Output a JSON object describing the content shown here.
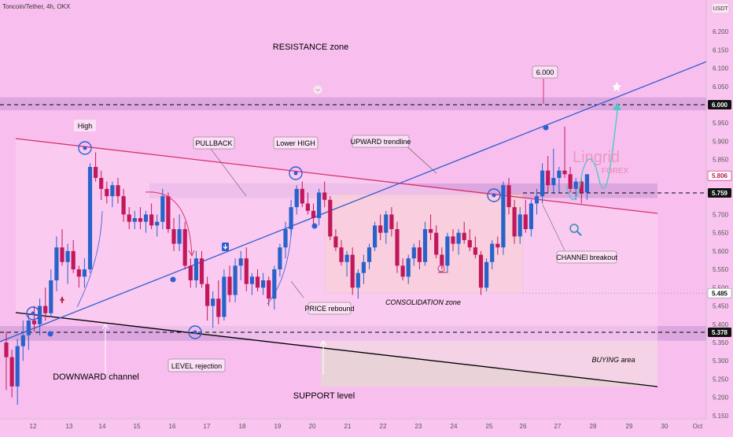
{
  "header": {
    "symbol_line": "Toncoin/Tether, 4h, OKX"
  },
  "colors": {
    "background": "#f9c4ef",
    "bull": "#2863c9",
    "bear": "#c2185b",
    "zone_band": "#dca6df",
    "consolidation_fill": "#f7c9c2",
    "buying_fill": "#e8d6d3",
    "trend_blue": "#2f5fd0",
    "channel_red": "#d6336c",
    "channel_black": "#000000",
    "brand": "#e58ab1"
  },
  "chart_data": {
    "type": "candlestick",
    "title": "Toncoin/Tether, 4h, OKX",
    "currency_label": "USDT",
    "y_axis": {
      "ticks": [
        "6.200",
        "6.150",
        "6.100",
        "6.050",
        "6.000",
        "5.950",
        "5.900",
        "5.850",
        "5.806",
        "5.759",
        "5.700",
        "5.650",
        "5.600",
        "5.550",
        "5.500",
        "5.485",
        "5.450",
        "5.400",
        "5.378",
        "5.350",
        "5.300",
        "5.250",
        "5.200",
        "5.150"
      ],
      "ylim": [
        5.13,
        6.23
      ]
    },
    "x_axis": {
      "ticks": [
        "12",
        "13",
        "14",
        "15",
        "16",
        "17",
        "18",
        "19",
        "20",
        "21",
        "22",
        "23",
        "24",
        "25",
        "26",
        "27",
        "28",
        "29",
        "30",
        "Oct"
      ]
    },
    "price_tags": [
      {
        "value": 6.0,
        "label": "6.000",
        "style": "dark"
      },
      {
        "value": 5.806,
        "label": "5.806",
        "style": "red"
      },
      {
        "value": 5.759,
        "label": "5.759",
        "style": "dark"
      },
      {
        "value": 5.485,
        "label": "5.485",
        "style": "light"
      },
      {
        "value": 5.378,
        "label": "5.378",
        "style": "dark"
      }
    ],
    "candles": [
      [
        5.35,
        5.38,
        5.22,
        5.31
      ],
      [
        5.31,
        5.33,
        5.2,
        5.23
      ],
      [
        5.23,
        5.36,
        5.18,
        5.34
      ],
      [
        5.34,
        5.41,
        5.3,
        5.37
      ],
      [
        5.37,
        5.43,
        5.33,
        5.41
      ],
      [
        5.41,
        5.45,
        5.38,
        5.4
      ],
      [
        5.4,
        5.47,
        5.37,
        5.45
      ],
      [
        5.45,
        5.5,
        5.41,
        5.43
      ],
      [
        5.43,
        5.55,
        5.42,
        5.52
      ],
      [
        5.52,
        5.64,
        5.49,
        5.61
      ],
      [
        5.61,
        5.66,
        5.56,
        5.57
      ],
      [
        5.57,
        5.62,
        5.51,
        5.6
      ],
      [
        5.6,
        5.63,
        5.54,
        5.55
      ],
      [
        5.55,
        5.56,
        5.5,
        5.53
      ],
      [
        5.53,
        5.58,
        5.5,
        5.55
      ],
      [
        5.55,
        5.84,
        5.54,
        5.83
      ],
      [
        5.83,
        5.87,
        5.79,
        5.8
      ],
      [
        5.8,
        5.82,
        5.74,
        5.77
      ],
      [
        5.77,
        5.79,
        5.73,
        5.75
      ],
      [
        5.75,
        5.79,
        5.72,
        5.78
      ],
      [
        5.78,
        5.8,
        5.73,
        5.75
      ],
      [
        5.75,
        5.77,
        5.68,
        5.7
      ],
      [
        5.7,
        5.72,
        5.66,
        5.68
      ],
      [
        5.68,
        5.71,
        5.66,
        5.69
      ],
      [
        5.69,
        5.72,
        5.66,
        5.68
      ],
      [
        5.68,
        5.71,
        5.65,
        5.7
      ],
      [
        5.7,
        5.73,
        5.66,
        5.67
      ],
      [
        5.67,
        5.7,
        5.64,
        5.68
      ],
      [
        5.68,
        5.77,
        5.66,
        5.75
      ],
      [
        5.75,
        5.76,
        5.65,
        5.66
      ],
      [
        5.66,
        5.69,
        5.6,
        5.62
      ],
      [
        5.62,
        5.7,
        5.6,
        5.66
      ],
      [
        5.66,
        5.68,
        5.55,
        5.56
      ],
      [
        5.56,
        5.58,
        5.5,
        5.52
      ],
      [
        5.52,
        5.6,
        5.5,
        5.58
      ],
      [
        5.58,
        5.6,
        5.5,
        5.51
      ],
      [
        5.51,
        5.53,
        5.41,
        5.45
      ],
      [
        5.45,
        5.49,
        5.39,
        5.47
      ],
      [
        5.47,
        5.52,
        5.4,
        5.42
      ],
      [
        5.42,
        5.55,
        5.41,
        5.53
      ],
      [
        5.53,
        5.56,
        5.46,
        5.48
      ],
      [
        5.48,
        5.58,
        5.46,
        5.56
      ],
      [
        5.56,
        5.6,
        5.52,
        5.58
      ],
      [
        5.58,
        5.61,
        5.49,
        5.51
      ],
      [
        5.51,
        5.54,
        5.48,
        5.53
      ],
      [
        5.53,
        5.55,
        5.49,
        5.5
      ],
      [
        5.5,
        5.54,
        5.48,
        5.52
      ],
      [
        5.52,
        5.53,
        5.45,
        5.47
      ],
      [
        5.47,
        5.56,
        5.44,
        5.55
      ],
      [
        5.55,
        5.62,
        5.53,
        5.61
      ],
      [
        5.61,
        5.68,
        5.58,
        5.66
      ],
      [
        5.66,
        5.74,
        5.64,
        5.72
      ],
      [
        5.72,
        5.78,
        5.7,
        5.77
      ],
      [
        5.77,
        5.79,
        5.72,
        5.73
      ],
      [
        5.73,
        5.76,
        5.7,
        5.71
      ],
      [
        5.71,
        5.73,
        5.67,
        5.69
      ],
      [
        5.69,
        5.77,
        5.67,
        5.76
      ],
      [
        5.76,
        5.79,
        5.72,
        5.74
      ],
      [
        5.74,
        5.75,
        5.63,
        5.64
      ],
      [
        5.64,
        5.66,
        5.6,
        5.61
      ],
      [
        5.61,
        5.63,
        5.56,
        5.57
      ],
      [
        5.57,
        5.6,
        5.53,
        5.59
      ],
      [
        5.59,
        5.61,
        5.48,
        5.5
      ],
      [
        5.5,
        5.55,
        5.47,
        5.54
      ],
      [
        5.54,
        5.59,
        5.51,
        5.57
      ],
      [
        5.57,
        5.62,
        5.55,
        5.61
      ],
      [
        5.61,
        5.68,
        5.6,
        5.67
      ],
      [
        5.67,
        5.7,
        5.63,
        5.65
      ],
      [
        5.65,
        5.71,
        5.62,
        5.7
      ],
      [
        5.7,
        5.72,
        5.64,
        5.66
      ],
      [
        5.66,
        5.68,
        5.54,
        5.56
      ],
      [
        5.56,
        5.58,
        5.52,
        5.53
      ],
      [
        5.53,
        5.59,
        5.51,
        5.58
      ],
      [
        5.58,
        5.62,
        5.56,
        5.61
      ],
      [
        5.61,
        5.63,
        5.55,
        5.57
      ],
      [
        5.57,
        5.68,
        5.56,
        5.66
      ],
      [
        5.66,
        5.7,
        5.63,
        5.65
      ],
      [
        5.65,
        5.67,
        5.58,
        5.59
      ],
      [
        5.59,
        5.61,
        5.55,
        5.56
      ],
      [
        5.56,
        5.65,
        5.54,
        5.64
      ],
      [
        5.64,
        5.66,
        5.6,
        5.62
      ],
      [
        5.62,
        5.66,
        5.59,
        5.65
      ],
      [
        5.65,
        5.68,
        5.62,
        5.63
      ],
      [
        5.63,
        5.66,
        5.6,
        5.61
      ],
      [
        5.61,
        5.64,
        5.58,
        5.59
      ],
      [
        5.59,
        5.6,
        5.48,
        5.5
      ],
      [
        5.5,
        5.58,
        5.49,
        5.57
      ],
      [
        5.57,
        5.63,
        5.55,
        5.62
      ],
      [
        5.62,
        5.64,
        5.59,
        5.61
      ],
      [
        5.61,
        5.79,
        5.59,
        5.78
      ],
      [
        5.78,
        5.8,
        5.7,
        5.72
      ],
      [
        5.72,
        5.74,
        5.62,
        5.64
      ],
      [
        5.64,
        5.72,
        5.62,
        5.7
      ],
      [
        5.7,
        5.74,
        5.65,
        5.66
      ],
      [
        5.66,
        5.74,
        5.64,
        5.73
      ],
      [
        5.73,
        5.77,
        5.7,
        5.75
      ],
      [
        5.75,
        5.84,
        5.73,
        5.82
      ],
      [
        5.82,
        5.86,
        5.76,
        5.78
      ],
      [
        5.78,
        5.88,
        5.76,
        5.8
      ],
      [
        5.8,
        5.83,
        5.76,
        5.82
      ],
      [
        5.82,
        5.94,
        5.8,
        5.81
      ],
      [
        5.81,
        5.83,
        5.76,
        5.77
      ],
      [
        5.77,
        5.8,
        5.74,
        5.79
      ],
      [
        5.79,
        5.8,
        5.73,
        5.76
      ],
      [
        5.76,
        5.81,
        5.74,
        5.81
      ]
    ],
    "lines": [
      {
        "name": "UPWARD trendline",
        "color": "#2f5fd0"
      },
      {
        "name": "DOWNWARD channel top",
        "color": "#d6336c"
      },
      {
        "name": "DOWNWARD channel bottom",
        "color": "#000000"
      }
    ]
  },
  "annotations": {
    "resistance_zone": "RESISTANCE zone",
    "high": "High",
    "pullback": "PULLBACK",
    "lower_high": "Lower HIGH",
    "upward_trendline": "UPWARD trendline",
    "price_label_6000": "6.000",
    "channel_breakout": "CHANNEl breakout",
    "consolidation_zone": "CONSOLIDATION zone",
    "price_rebound": "PRICE rebound",
    "level_rejection": "LEVEL rejection",
    "downward_channel": "DOWNWARD channel",
    "support_level": "SUPPORT level",
    "buying_area": "BUYING area"
  },
  "brand": {
    "line1": "Lingrid",
    "line2": "FOREX"
  }
}
